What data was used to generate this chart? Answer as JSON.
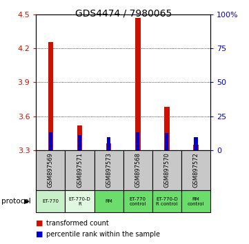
{
  "title": "GDS4474 / 7980065",
  "samples": [
    "GSM897569",
    "GSM897571",
    "GSM897573",
    "GSM897568",
    "GSM897570",
    "GSM897572"
  ],
  "red_values": [
    4.26,
    3.52,
    3.36,
    4.47,
    3.68,
    3.35
  ],
  "blue_values": [
    3.455,
    3.435,
    3.415,
    3.46,
    3.45,
    3.415
  ],
  "red_base": 3.3,
  "ylim": [
    3.3,
    4.5
  ],
  "yticks_left": [
    3.3,
    3.6,
    3.9,
    4.2,
    4.5
  ],
  "yticks_right": [
    0,
    25,
    50,
    75,
    100
  ],
  "protocols": [
    "ET-770",
    "ET-770-D\nR",
    "RM",
    "ET-770\ncontrol",
    "ET-770-D\nR control",
    "RM\ncontrol"
  ],
  "protocol_colors": [
    "#d0f0d0",
    "#e8f8e8",
    "#98e898",
    "#98e898",
    "#98e898",
    "#98e898"
  ],
  "protocol_label": "protocol",
  "legend1": "transformed count",
  "legend2": "percentile rank within the sample",
  "red_color": "#cc1100",
  "blue_color": "#0000cc",
  "red_bar_width": 0.18,
  "blue_bar_width": 0.12,
  "sample_bg": "#c8c8c8",
  "grid_color": "#000000"
}
